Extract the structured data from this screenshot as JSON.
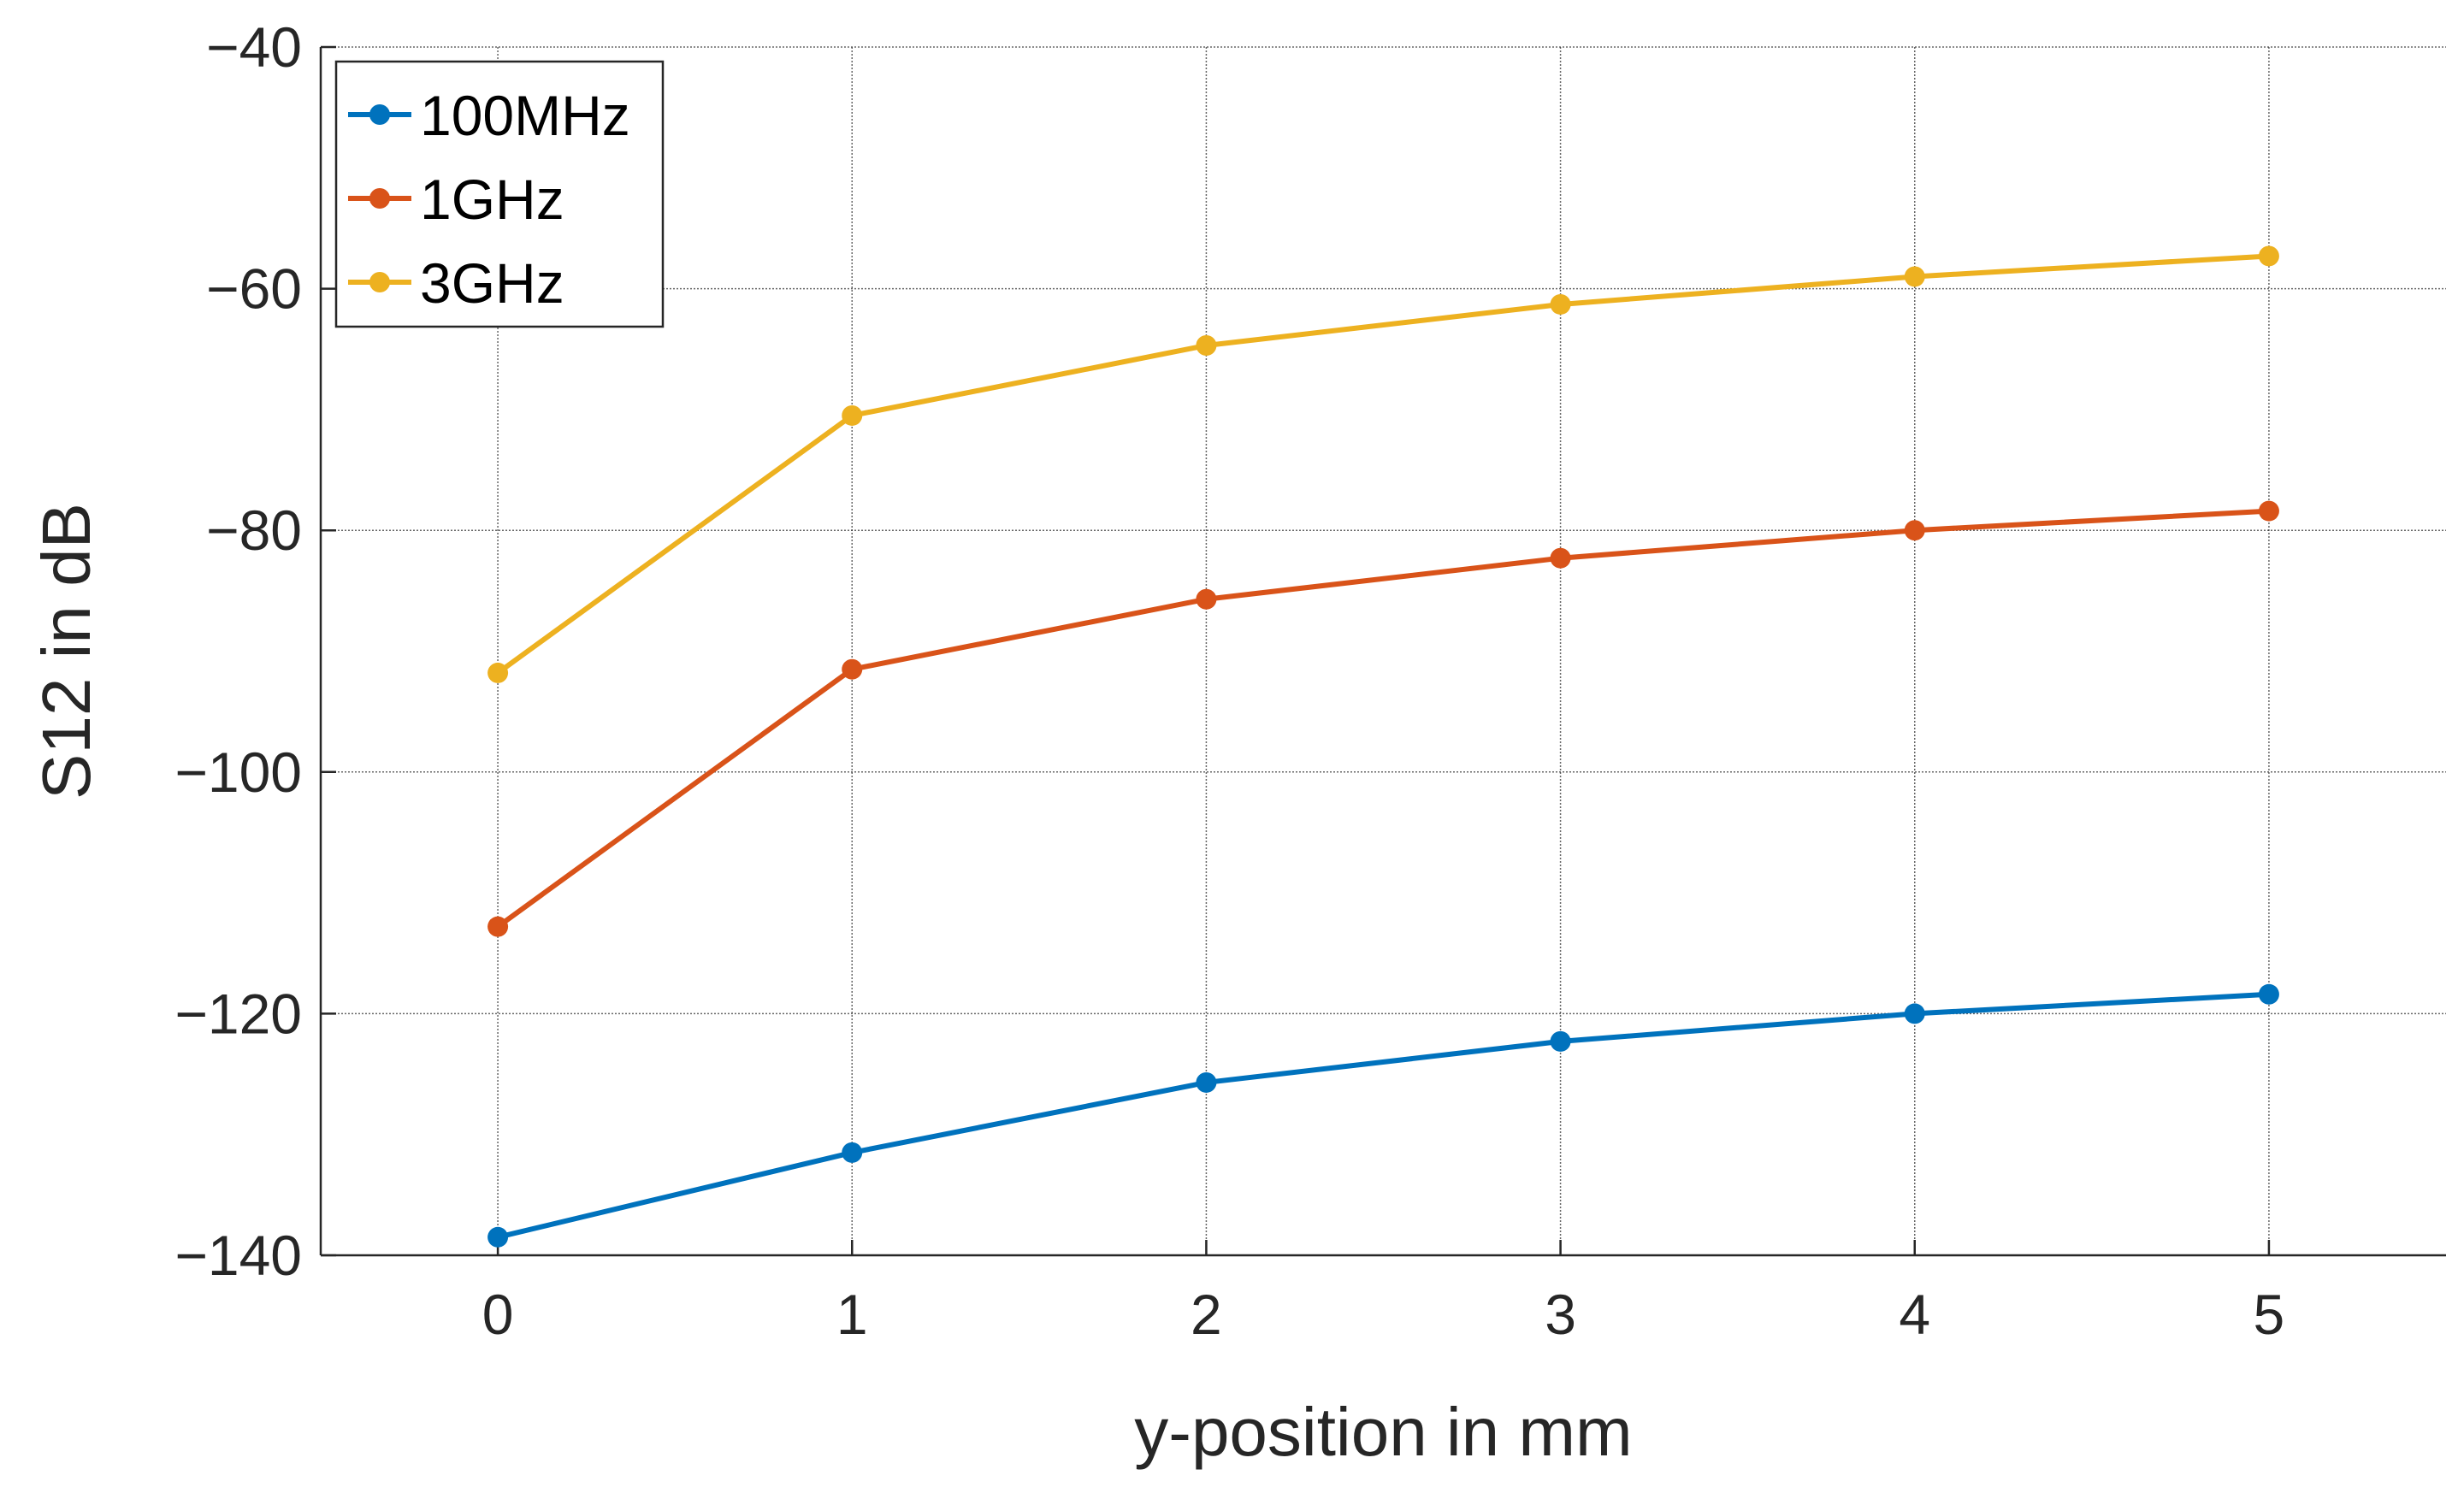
{
  "chart_data": {
    "type": "line",
    "title": "",
    "xlabel": "y-position in mm",
    "ylabel": "S12 in dB",
    "x": [
      0,
      1,
      2,
      3,
      4,
      5
    ],
    "xlim": [
      -0.5,
      5.5
    ],
    "ylim": [
      -140,
      -40
    ],
    "xticks": [
      "0",
      "1",
      "2",
      "3",
      "4",
      "5"
    ],
    "yticks": [
      "−140",
      "−120",
      "−100",
      "−80",
      "−60",
      "−40"
    ],
    "ytick_values": [
      -140,
      -120,
      -100,
      -80,
      -60,
      -40
    ],
    "legend_position": "top-left",
    "series": [
      {
        "name": "100MHz",
        "color": "#0072BD",
        "values": [
          -138.5,
          -131.5,
          -125.7,
          -122.3,
          -120.0,
          -118.4
        ]
      },
      {
        "name": "1GHz",
        "color": "#D95319",
        "values": [
          -112.8,
          -91.5,
          -85.7,
          -82.3,
          -80.0,
          -78.4
        ]
      },
      {
        "name": "3GHz",
        "color": "#EDB120",
        "values": [
          -91.8,
          -70.5,
          -64.7,
          -61.3,
          -59.0,
          -57.3
        ]
      }
    ]
  }
}
